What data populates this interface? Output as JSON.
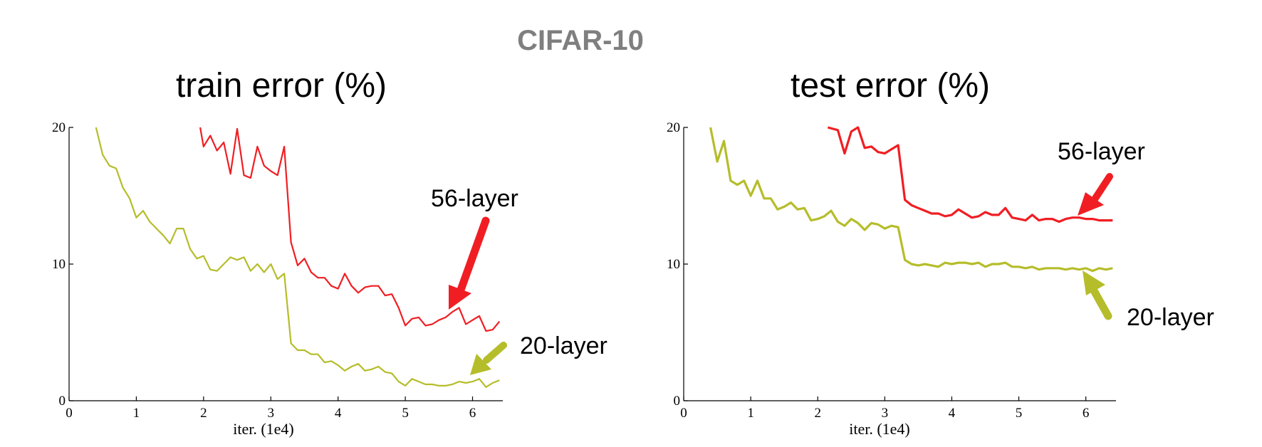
{
  "figure": {
    "title": "CIFAR-10"
  },
  "chart_data": [
    {
      "type": "line",
      "title": "train error (%)",
      "xlabel": "iter. (1e4)",
      "ylabel": "",
      "xlim": [
        0,
        6.45
      ],
      "ylim": [
        0,
        20
      ],
      "xticks": [
        "0",
        "1",
        "2",
        "3",
        "4",
        "5",
        "6"
      ],
      "yticks": [
        "0",
        "10",
        "20"
      ],
      "grid": false,
      "series": [
        {
          "name": "56-layer",
          "color": "#f01e23",
          "x": [
            1.95,
            2.0,
            2.1,
            2.2,
            2.3,
            2.4,
            2.5,
            2.6,
            2.7,
            2.8,
            2.9,
            3.0,
            3.1,
            3.2,
            3.3,
            3.4,
            3.5,
            3.6,
            3.7,
            3.8,
            3.9,
            4.0,
            4.1,
            4.2,
            4.3,
            4.4,
            4.5,
            4.6,
            4.7,
            4.8,
            4.9,
            5.0,
            5.1,
            5.2,
            5.3,
            5.4,
            5.5,
            5.6,
            5.7,
            5.8,
            5.9,
            6.0,
            6.1,
            6.2,
            6.3,
            6.4
          ],
          "y": [
            20.0,
            18.6,
            19.4,
            18.3,
            18.9,
            16.6,
            19.9,
            16.5,
            16.3,
            18.6,
            17.2,
            16.8,
            16.5,
            18.6,
            11.6,
            9.9,
            10.4,
            9.4,
            9.0,
            9.0,
            8.4,
            8.2,
            9.3,
            8.4,
            7.9,
            8.3,
            8.4,
            8.4,
            7.7,
            7.8,
            6.8,
            5.5,
            6.0,
            6.1,
            5.5,
            5.6,
            5.9,
            6.1,
            6.5,
            6.8,
            5.6,
            5.9,
            6.2,
            5.1,
            5.2,
            5.8
          ]
        },
        {
          "name": "20-layer",
          "color": "#b5bd2a",
          "x": [
            0.4,
            0.5,
            0.6,
            0.7,
            0.8,
            0.9,
            1.0,
            1.1,
            1.2,
            1.3,
            1.4,
            1.5,
            1.6,
            1.7,
            1.8,
            1.9,
            2.0,
            2.1,
            2.2,
            2.3,
            2.4,
            2.5,
            2.6,
            2.7,
            2.8,
            2.9,
            3.0,
            3.1,
            3.2,
            3.3,
            3.4,
            3.5,
            3.6,
            3.7,
            3.8,
            3.9,
            4.0,
            4.1,
            4.2,
            4.3,
            4.4,
            4.5,
            4.6,
            4.7,
            4.8,
            4.9,
            5.0,
            5.1,
            5.2,
            5.3,
            5.4,
            5.5,
            5.6,
            5.7,
            5.8,
            5.9,
            6.0,
            6.1,
            6.2,
            6.3,
            6.4
          ],
          "y": [
            20.0,
            18.0,
            17.2,
            17.0,
            15.6,
            14.8,
            13.4,
            13.9,
            13.1,
            12.6,
            12.1,
            11.5,
            12.6,
            12.6,
            11.1,
            10.4,
            10.6,
            9.6,
            9.5,
            10.0,
            10.5,
            10.3,
            10.5,
            9.5,
            10.0,
            9.4,
            10.0,
            8.9,
            9.3,
            4.2,
            3.7,
            3.7,
            3.4,
            3.4,
            2.8,
            2.9,
            2.6,
            2.2,
            2.5,
            2.7,
            2.2,
            2.3,
            2.5,
            2.1,
            2.0,
            1.4,
            1.1,
            1.6,
            1.4,
            1.2,
            1.2,
            1.1,
            1.1,
            1.2,
            1.4,
            1.3,
            1.4,
            1.6,
            1.0,
            1.3,
            1.5
          ]
        }
      ],
      "annotations": [
        {
          "text": "56-layer",
          "series": "56-layer"
        },
        {
          "text": "20-layer",
          "series": "20-layer"
        }
      ]
    },
    {
      "type": "line",
      "title": "test error (%)",
      "xlabel": "iter. (1e4)",
      "ylabel": "",
      "xlim": [
        0,
        6.45
      ],
      "ylim": [
        0,
        20
      ],
      "xticks": [
        "0",
        "1",
        "2",
        "3",
        "4",
        "5",
        "6"
      ],
      "yticks": [
        "0",
        "10",
        "20"
      ],
      "grid": false,
      "series": [
        {
          "name": "56-layer",
          "color": "#f01e23",
          "x": [
            2.15,
            2.3,
            2.4,
            2.5,
            2.6,
            2.7,
            2.8,
            2.9,
            3.0,
            3.1,
            3.2,
            3.3,
            3.4,
            3.5,
            3.6,
            3.7,
            3.8,
            3.9,
            4.0,
            4.1,
            4.2,
            4.3,
            4.4,
            4.5,
            4.6,
            4.7,
            4.8,
            4.9,
            5.0,
            5.1,
            5.2,
            5.3,
            5.4,
            5.5,
            5.6,
            5.7,
            5.8,
            5.9,
            6.0,
            6.1,
            6.2,
            6.3,
            6.4
          ],
          "y": [
            20.0,
            19.8,
            18.1,
            19.7,
            20.0,
            18.5,
            18.6,
            18.2,
            18.1,
            18.4,
            18.7,
            14.7,
            14.3,
            14.1,
            13.9,
            13.7,
            13.7,
            13.5,
            13.6,
            14.0,
            13.7,
            13.4,
            13.5,
            13.8,
            13.6,
            13.6,
            14.1,
            13.4,
            13.3,
            13.2,
            13.6,
            13.2,
            13.3,
            13.3,
            13.1,
            13.3,
            13.4,
            13.4,
            13.3,
            13.3,
            13.2,
            13.2,
            13.2
          ]
        },
        {
          "name": "20-layer",
          "color": "#b5bd2a",
          "x": [
            0.4,
            0.5,
            0.6,
            0.7,
            0.8,
            0.9,
            1.0,
            1.1,
            1.2,
            1.3,
            1.4,
            1.5,
            1.6,
            1.7,
            1.8,
            1.9,
            2.0,
            2.1,
            2.2,
            2.3,
            2.4,
            2.5,
            2.6,
            2.7,
            2.8,
            2.9,
            3.0,
            3.1,
            3.2,
            3.3,
            3.4,
            3.5,
            3.6,
            3.7,
            3.8,
            3.9,
            4.0,
            4.1,
            4.2,
            4.3,
            4.4,
            4.5,
            4.6,
            4.7,
            4.8,
            4.9,
            5.0,
            5.1,
            5.2,
            5.3,
            5.4,
            5.5,
            5.6,
            5.7,
            5.8,
            5.9,
            6.0,
            6.1,
            6.2,
            6.3,
            6.4
          ],
          "y": [
            20.0,
            17.5,
            19.0,
            16.1,
            15.8,
            16.1,
            15.0,
            16.1,
            14.8,
            14.8,
            14.0,
            14.2,
            14.5,
            14.0,
            14.1,
            13.2,
            13.3,
            13.5,
            13.9,
            13.1,
            12.8,
            13.3,
            13.0,
            12.5,
            13.0,
            12.9,
            12.6,
            12.8,
            12.7,
            10.3,
            10.0,
            9.9,
            10.0,
            9.9,
            9.8,
            10.1,
            10.0,
            10.1,
            10.1,
            10.0,
            10.1,
            9.8,
            10.0,
            10.0,
            10.1,
            9.8,
            9.8,
            9.7,
            9.8,
            9.6,
            9.7,
            9.7,
            9.7,
            9.6,
            9.7,
            9.6,
            9.7,
            9.5,
            9.7,
            9.6,
            9.7
          ]
        }
      ],
      "annotations": [
        {
          "text": "56-layer",
          "series": "56-layer"
        },
        {
          "text": "20-layer",
          "series": "20-layer"
        }
      ]
    }
  ]
}
